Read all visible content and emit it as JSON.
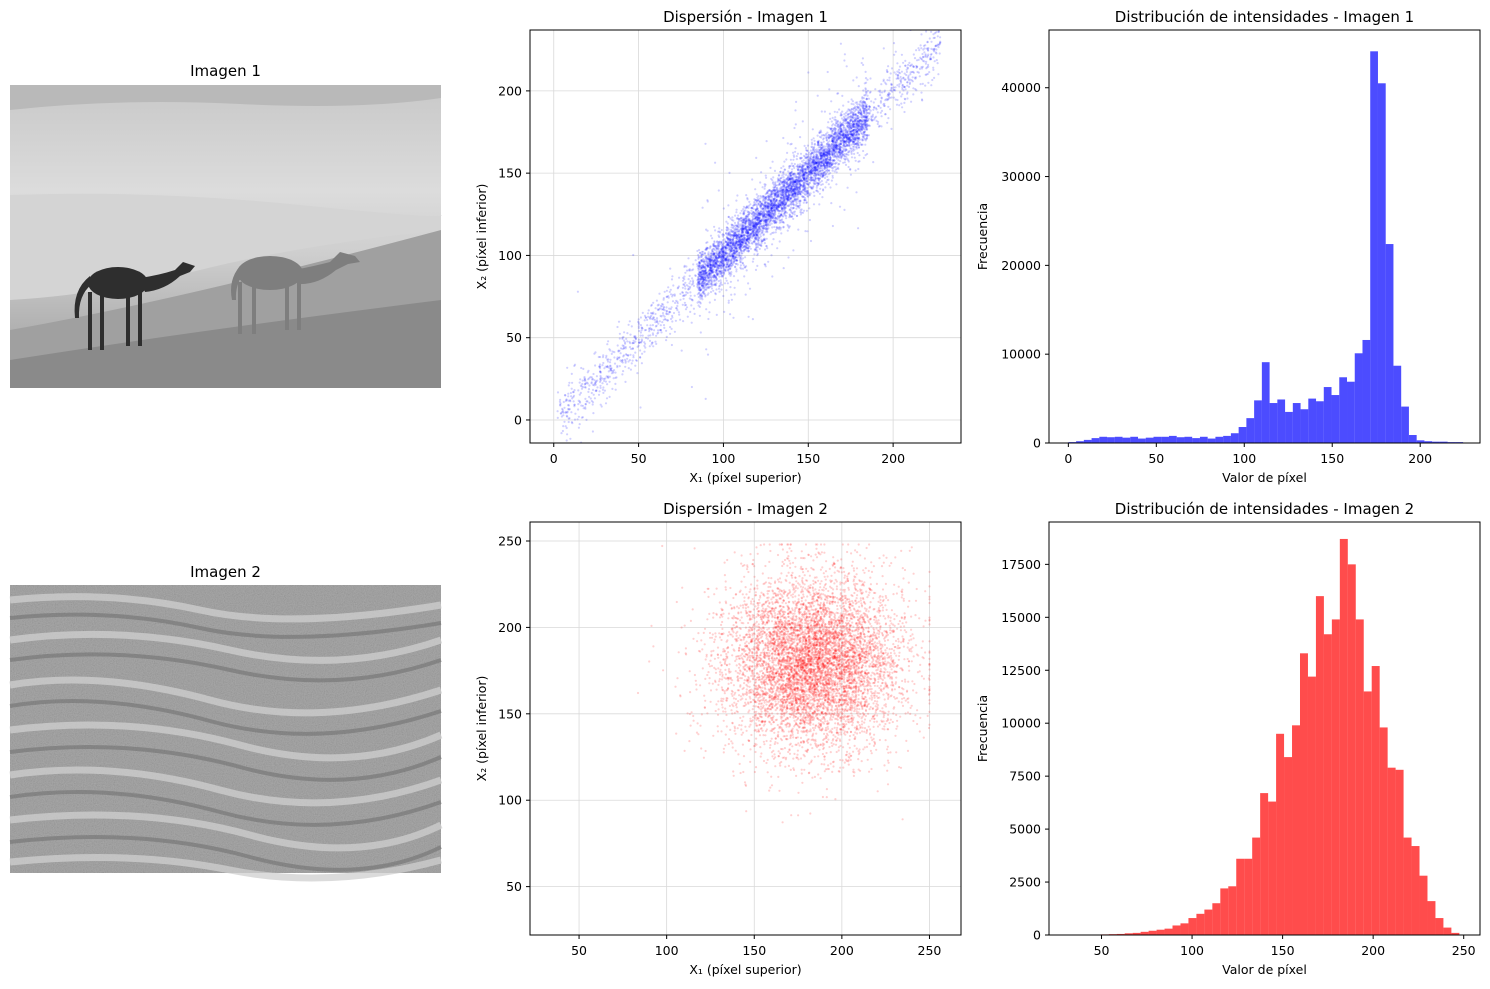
{
  "images": [
    {
      "title": "Imagen 1",
      "content": "grayscale photo: two camels walking across sand dunes"
    },
    {
      "title": "Imagen 2",
      "content": "grayscale photo: rippled sand texture"
    }
  ],
  "chart_data": [
    {
      "type": "scatter",
      "title": "Dispersión - Imagen 1",
      "xlabel": "X₁ (píxel superior)",
      "ylabel": "X₂ (píxel inferior)",
      "xlim": [
        -14,
        240
      ],
      "ylim": [
        -14,
        237
      ],
      "xticks": [
        0,
        50,
        100,
        150,
        200
      ],
      "yticks": [
        0,
        50,
        100,
        150,
        200
      ],
      "grid": true,
      "color": "#0000ff",
      "distribution": {
        "kind": "correlated",
        "x_range": [
          2,
          228
        ],
        "y_center_slope": 1.0,
        "spread": 7,
        "dense_range": [
          85,
          185
        ]
      }
    },
    {
      "type": "bar",
      "title": "Distribución de intensidades - Imagen 1",
      "xlabel": "Valor de píxel",
      "ylabel": "Frecuencia",
      "xlim": [
        -11,
        234
      ],
      "ylim": [
        0,
        46500
      ],
      "xticks": [
        0,
        50,
        100,
        150,
        200
      ],
      "yticks": [
        0,
        10000,
        20000,
        30000,
        40000
      ],
      "color": "#0000ff",
      "bin_start": 0,
      "bin_width": 4.4,
      "values": [
        100,
        200,
        350,
        550,
        700,
        650,
        700,
        600,
        700,
        500,
        600,
        700,
        700,
        800,
        650,
        700,
        550,
        700,
        500,
        700,
        800,
        1100,
        1800,
        2800,
        4800,
        9100,
        4500,
        4900,
        3500,
        4500,
        3800,
        5000,
        4700,
        6300,
        5400,
        7400,
        6900,
        10100,
        11600,
        44100,
        40500,
        22400,
        8700,
        4100,
        900,
        300,
        200,
        150,
        150,
        100,
        100
      ]
    },
    {
      "type": "scatter",
      "title": "Dispersión - Imagen 2",
      "xlabel": "X₁ (píxel superior)",
      "ylabel": "X₂ (píxel inferior)",
      "xlim": [
        22,
        268
      ],
      "ylim": [
        22,
        261
      ],
      "xticks": [
        50,
        100,
        150,
        200,
        250
      ],
      "yticks": [
        50,
        100,
        150,
        200,
        250
      ],
      "grid": true,
      "color": "#ff0000",
      "distribution": {
        "kind": "blob",
        "center": [
          183,
          180
        ],
        "sd": [
          25,
          25
        ],
        "clip": [
          90,
          250
        ]
      }
    },
    {
      "type": "bar",
      "title": "Distribución de intensidades - Imagen 2",
      "xlabel": "Valor de píxel",
      "ylabel": "Frecuencia",
      "xlim": [
        21,
        259
      ],
      "ylim": [
        0,
        19500
      ],
      "xticks": [
        50,
        100,
        150,
        200,
        250
      ],
      "yticks": [
        0,
        2500,
        5000,
        7500,
        10000,
        12500,
        15000,
        17500
      ],
      "color": "#ff0000",
      "bin_start": 32,
      "bin_width": 4.4,
      "values": [
        10,
        10,
        20,
        20,
        30,
        40,
        50,
        80,
        100,
        150,
        200,
        250,
        300,
        450,
        550,
        800,
        1000,
        1200,
        1500,
        2200,
        2300,
        3600,
        3600,
        4600,
        6700,
        6300,
        9500,
        8400,
        9900,
        13300,
        12200,
        16000,
        14200,
        14900,
        18700,
        17500,
        14900,
        11500,
        12700,
        9800,
        7900,
        7800,
        4600,
        4200,
        2800,
        1600,
        800,
        350,
        100
      ]
    }
  ],
  "colors": {
    "blue": "#0000ff",
    "red": "#ff0000",
    "axis": "#000000",
    "grid": "#d9d9d9"
  }
}
